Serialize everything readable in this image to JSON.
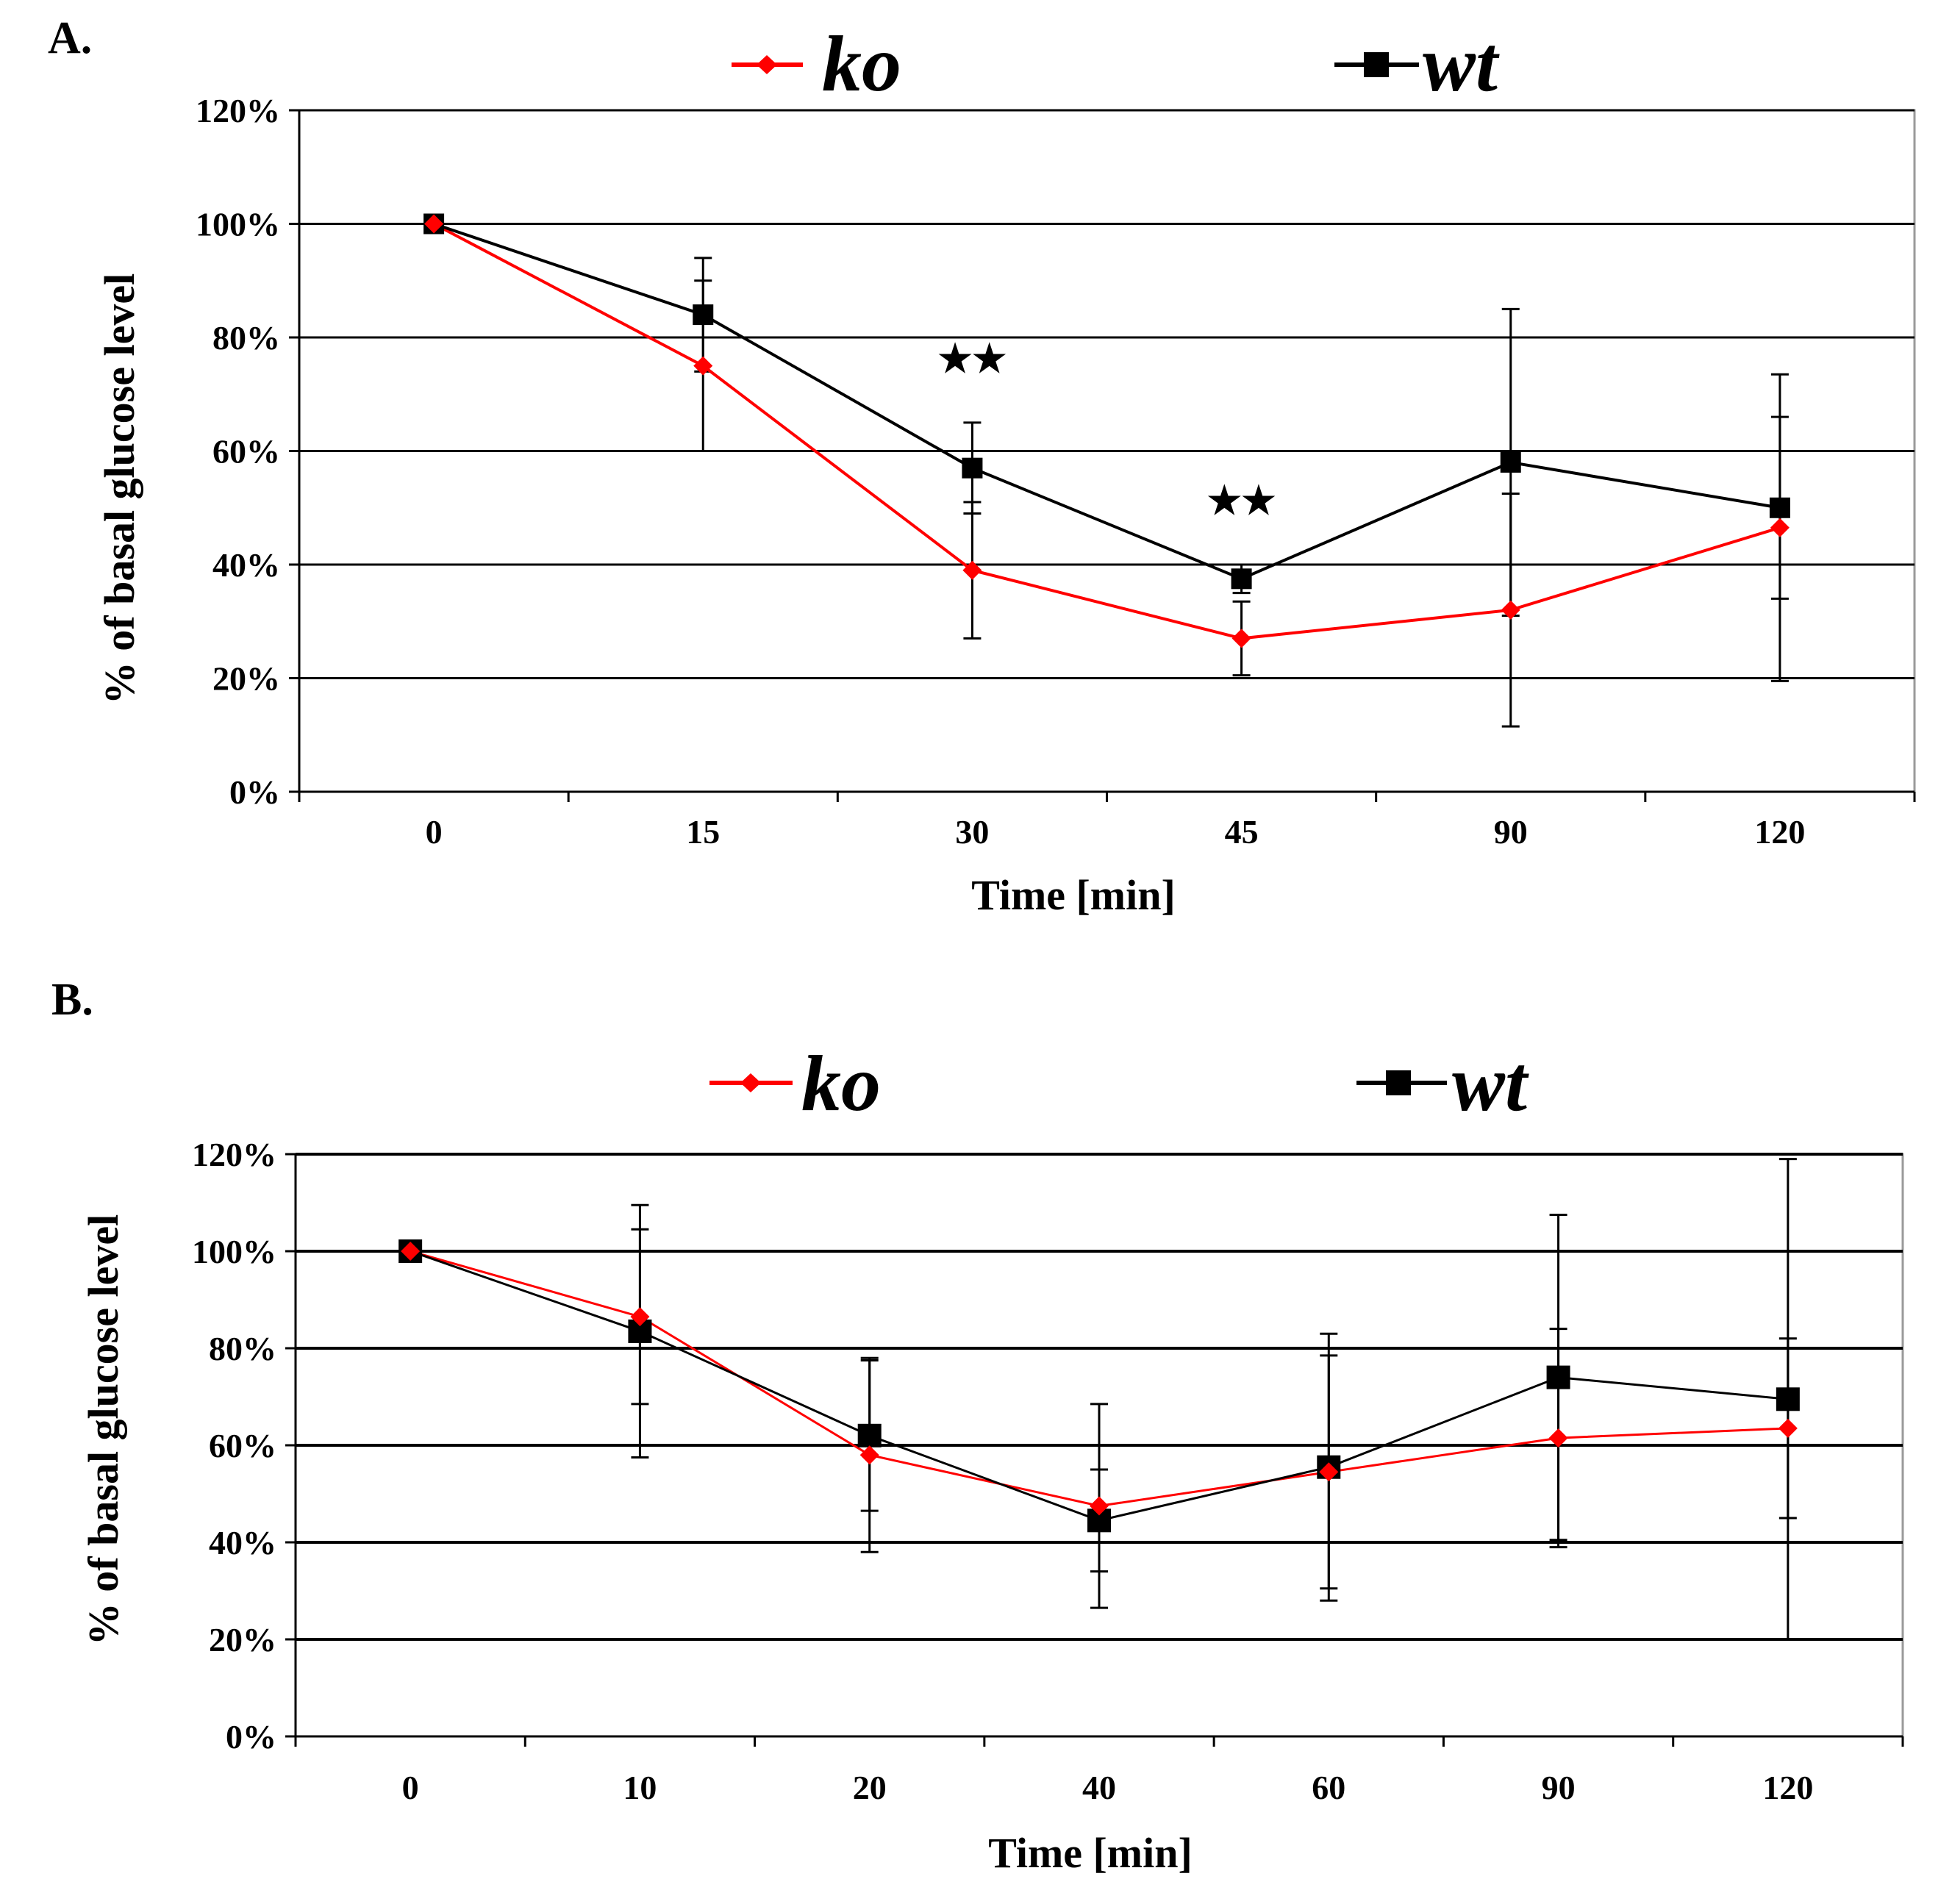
{
  "chart_data": [
    {
      "panel_label": "A.",
      "type": "line",
      "x": [
        "0",
        "15",
        "30",
        "45",
        "90",
        "120"
      ],
      "series": [
        {
          "name": "ko",
          "color": "#ff0000",
          "marker": "diamond",
          "values": [
            100,
            75,
            39,
            27,
            32,
            46.5
          ],
          "error": [
            0,
            15,
            12,
            6.5,
            20.5,
            27
          ]
        },
        {
          "name": "wt",
          "color": "#000000",
          "marker": "square",
          "values": [
            100,
            84,
            57,
            37.5,
            58,
            50
          ],
          "error": [
            0,
            10,
            8,
            2.5,
            27,
            16
          ]
        }
      ],
      "xlabel": "Time [min]",
      "ylabel": "% of basal glucose level",
      "yticks": [
        "0%",
        "20%",
        "40%",
        "60%",
        "80%",
        "100%",
        "120%"
      ],
      "ylim": [
        0,
        120
      ],
      "grid": true,
      "legend": "top",
      "annotations": [
        {
          "x": "30",
          "y": 74,
          "text": "★★"
        },
        {
          "x": "45",
          "y": 49,
          "text": "★★"
        }
      ]
    },
    {
      "panel_label": "B.",
      "type": "line",
      "x": [
        "0",
        "10",
        "20",
        "40",
        "60",
        "90",
        "120"
      ],
      "series": [
        {
          "name": "ko",
          "color": "#ff0000",
          "marker": "diamond",
          "values": [
            100,
            86.5,
            58,
            47.5,
            54.5,
            61.5,
            63.5
          ],
          "error": [
            0,
            18,
            20,
            21,
            24,
            22.5,
            18.5
          ]
        },
        {
          "name": "wt",
          "color": "#000000",
          "marker": "square",
          "values": [
            100,
            83.5,
            62,
            44.5,
            55.5,
            74,
            69.5
          ],
          "error": [
            0,
            26,
            15.5,
            10.5,
            27.5,
            33.5,
            49.5
          ]
        }
      ],
      "xlabel": "Time [min]",
      "ylabel": "% of basal glucose level",
      "yticks": [
        "0%",
        "20%",
        "40%",
        "60%",
        "80%",
        "100%",
        "120%"
      ],
      "ylim": [
        0,
        120
      ],
      "grid": true,
      "legend": "top"
    }
  ]
}
